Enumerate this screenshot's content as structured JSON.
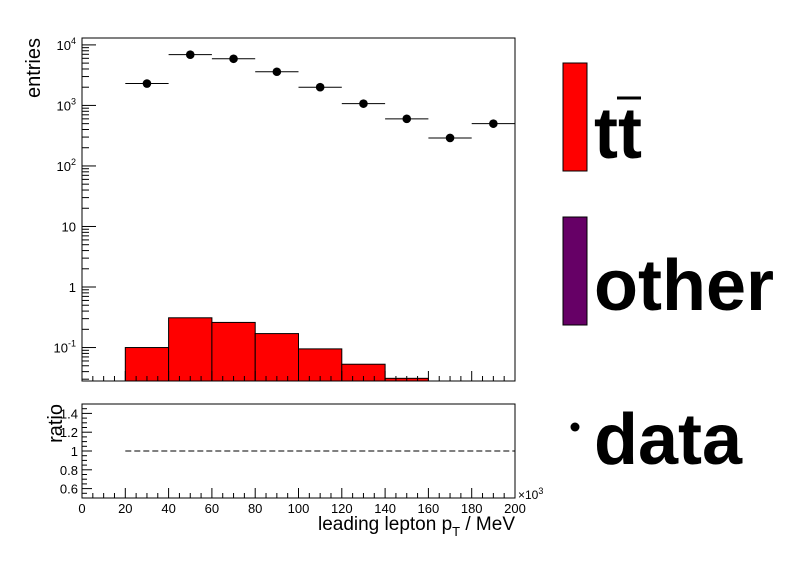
{
  "chart_data": [
    {
      "type": "bar",
      "panel": "main",
      "yscale": "log",
      "ylabel": "entries",
      "xlim": [
        0,
        200000
      ],
      "ylim": [
        0.028,
        13000
      ],
      "grid": false,
      "legend_position": "right",
      "y_tick_labels": [
        {
          "value": 0.1,
          "label": "10",
          "exp": "-1"
        },
        {
          "value": 1,
          "label": "1",
          "exp": ""
        },
        {
          "value": 10,
          "label": "10",
          "exp": ""
        },
        {
          "value": 100,
          "label": "10",
          "exp": "2"
        },
        {
          "value": 1000,
          "label": "10",
          "exp": "3"
        },
        {
          "value": 10000,
          "label": "10",
          "exp": "4"
        }
      ],
      "series": [
        {
          "name": "tt̄",
          "kind": "stacked-histogram",
          "color": "#ff0000",
          "bin_edges": [
            20000,
            40000,
            60000,
            80000,
            100000,
            120000,
            140000,
            160000
          ],
          "values": [
            0.1,
            0.31,
            0.26,
            0.17,
            0.095,
            0.053,
            0.031
          ]
        },
        {
          "name": "other",
          "kind": "stacked-histogram",
          "color": "#660066",
          "bin_edges": [],
          "values": []
        },
        {
          "name": "data",
          "kind": "points",
          "color": "#000000",
          "x": [
            30000,
            50000,
            70000,
            90000,
            110000,
            130000,
            150000,
            170000,
            190000
          ],
          "xerr": 10000,
          "values": [
            2300,
            6900,
            5900,
            3600,
            2000,
            1070,
            600,
            290,
            500
          ]
        }
      ]
    },
    {
      "type": "line",
      "panel": "ratio",
      "ylabel": "ratio",
      "xlabel": "leading lepton p",
      "xlabel_sub": "T",
      "xlabel_unit": " / MeV",
      "xlim": [
        0,
        200000
      ],
      "ylim": [
        0.5,
        1.5
      ],
      "x_multiplier": "×10",
      "x_multiplier_exp": "3",
      "x_tick_labels": [
        {
          "value": 0,
          "label": "0"
        },
        {
          "value": 20000,
          "label": "20"
        },
        {
          "value": 40000,
          "label": "40"
        },
        {
          "value": 60000,
          "label": "60"
        },
        {
          "value": 80000,
          "label": "80"
        },
        {
          "value": 100000,
          "label": "100"
        },
        {
          "value": 120000,
          "label": "120"
        },
        {
          "value": 140000,
          "label": "140"
        },
        {
          "value": 160000,
          "label": "160"
        },
        {
          "value": 180000,
          "label": "180"
        },
        {
          "value": 200000,
          "label": "200"
        }
      ],
      "y_tick_labels": [
        {
          "value": 0.6,
          "label": "0.6"
        },
        {
          "value": 0.8,
          "label": "0.8"
        },
        {
          "value": 1.0,
          "label": "1"
        },
        {
          "value": 1.2,
          "label": "1.2"
        },
        {
          "value": 1.4,
          "label": "1.4"
        }
      ],
      "reference_line": {
        "value": 1.0,
        "style": "dashed"
      }
    }
  ],
  "legend": {
    "items": [
      {
        "label": "tt",
        "overline_char": 1,
        "marker": "box",
        "color": "#ff0000"
      },
      {
        "label": "other",
        "marker": "box",
        "color": "#660066"
      },
      {
        "label": "data",
        "marker": "dot",
        "color": "#000000"
      }
    ]
  }
}
